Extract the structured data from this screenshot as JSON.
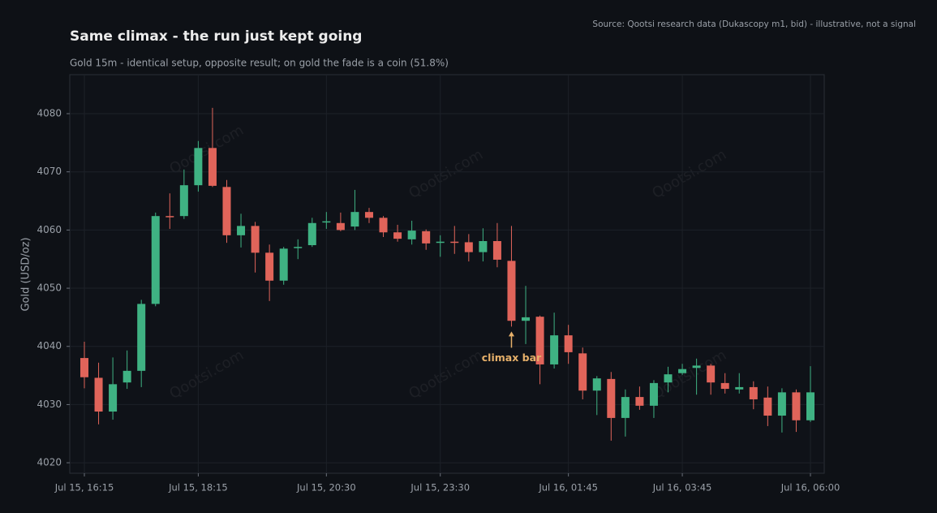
{
  "chart_data": {
    "type": "candlestick",
    "title": "Same climax - the run just kept going",
    "subtitle": "Gold 15m - identical setup, opposite result; on gold the fade is a coin (51.8%)",
    "source": "Source: Qootsi research data (Dukascopy m1, bid) - illustrative, not a signal",
    "y_label": "Gold (USD/oz)",
    "watermark": "Qootsi.com",
    "up_color": "#3fb283",
    "down_color": "#e0645a",
    "grid": true,
    "ylim": [
      4018.2,
      4086.7
    ],
    "yticks": [
      4020,
      4030,
      4040,
      4050,
      4060,
      4070,
      4080
    ],
    "categories": [
      "Jul 15, 16:15",
      null,
      null,
      null,
      null,
      null,
      null,
      null,
      "Jul 15, 18:15",
      null,
      null,
      null,
      null,
      null,
      null,
      null,
      null,
      "Jul 15, 20:30",
      null,
      null,
      null,
      null,
      null,
      null,
      null,
      "Jul 15, 23:30",
      null,
      null,
      null,
      null,
      null,
      null,
      null,
      null,
      "Jul 16, 01:45",
      null,
      null,
      null,
      null,
      null,
      null,
      null,
      "Jul 16, 03:45",
      null,
      null,
      null,
      null,
      null,
      null,
      null,
      null,
      "Jul 16, 06:00"
    ],
    "open": [
      4038.0,
      4034.6,
      4028.8,
      4033.8,
      4035.8,
      4047.3,
      4062.4,
      4062.4,
      4067.7,
      4074.1,
      4067.4,
      4059.1,
      4060.7,
      4056.1,
      4051.3,
      4056.9,
      4057.4,
      4061.3,
      4061.2,
      4060.6,
      4063.1,
      4062.1,
      4059.6,
      4058.4,
      4059.8,
      4057.8,
      4058.0,
      4057.9,
      4056.2,
      4058.1,
      4054.7,
      4044.4,
      4045.1,
      4036.9,
      4041.9,
      4038.8,
      4032.4,
      4034.4,
      4027.7,
      4031.3,
      4029.8,
      4033.8,
      4035.4,
      4036.3,
      4036.7,
      4033.7,
      4032.6,
      4033.0,
      4031.2,
      4028.1,
      4032.1,
      4027.3
    ],
    "high": [
      4040.8,
      4037.2,
      4038.1,
      4039.3,
      4048.0,
      4063.0,
      4066.3,
      4070.4,
      4075.3,
      4081.0,
      4068.6,
      4062.8,
      4061.4,
      4057.5,
      4057.1,
      4058.4,
      4062.1,
      4063.1,
      4063.0,
      4066.9,
      4063.8,
      4062.4,
      4060.9,
      4061.6,
      4060.1,
      4059.1,
      4060.7,
      4059.3,
      4060.3,
      4061.2,
      4060.7,
      4050.4,
      4045.3,
      4045.8,
      4043.7,
      4039.8,
      4034.9,
      4035.6,
      4032.6,
      4033.1,
      4034.2,
      4036.5,
      4037.0,
      4037.9,
      4037.0,
      4035.4,
      4035.4,
      4034.0,
      4033.1,
      4032.8,
      4032.6,
      4036.6
    ],
    "low": [
      4032.8,
      4026.6,
      4027.4,
      4032.7,
      4033.0,
      4046.9,
      4060.2,
      4061.9,
      4066.6,
      4067.4,
      4057.8,
      4057.0,
      4052.7,
      4047.8,
      4050.6,
      4055.0,
      4057.1,
      4060.2,
      4059.8,
      4060.0,
      4061.2,
      4058.8,
      4058.0,
      4057.5,
      4056.6,
      4055.4,
      4055.9,
      4054.6,
      4054.6,
      4053.6,
      4043.4,
      4040.4,
      4033.5,
      4036.2,
      4037.0,
      4030.9,
      4028.2,
      4023.8,
      4024.5,
      4029.1,
      4027.7,
      4032.1,
      4035.1,
      4031.7,
      4031.7,
      4031.9,
      4031.9,
      4029.2,
      4026.3,
      4025.2,
      4025.3,
      4027.0
    ],
    "close": [
      4034.7,
      4028.8,
      4033.5,
      4035.8,
      4047.3,
      4062.4,
      4062.2,
      4067.7,
      4074.1,
      4067.6,
      4059.1,
      4060.7,
      4056.1,
      4051.3,
      4056.8,
      4057.1,
      4061.2,
      4061.5,
      4060.0,
      4063.1,
      4062.1,
      4059.6,
      4058.5,
      4059.9,
      4057.7,
      4058.0,
      4057.8,
      4056.2,
      4058.1,
      4054.9,
      4044.4,
      4045.0,
      4036.9,
      4041.9,
      4039.0,
      4032.4,
      4034.5,
      4027.7,
      4031.3,
      4029.8,
      4033.7,
      4035.2,
      4036.1,
      4036.7,
      4033.8,
      4032.7,
      4033.0,
      4030.9,
      4028.1,
      4032.1,
      4027.3,
      4032.1
    ],
    "annotation": {
      "text": "climax bar",
      "index": 30,
      "color": "#e6b06a"
    }
  }
}
